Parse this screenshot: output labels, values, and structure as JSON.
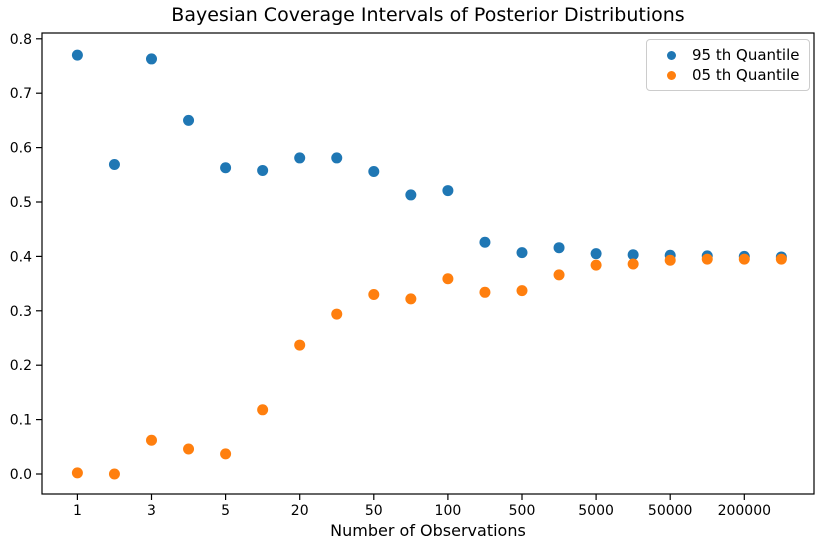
{
  "chart_data": {
    "type": "scatter",
    "title": "Bayesian Coverage Intervals of Posterior Distributions",
    "xlabel": "Number of Observations",
    "ylabel": "",
    "x_axis": {
      "kind": "categorical",
      "n_categories": 20,
      "tick_positions": [
        0,
        2,
        4,
        6,
        8,
        10,
        12,
        14,
        16,
        18
      ],
      "tick_labels": [
        "1",
        "3",
        "5",
        "20",
        "50",
        "100",
        "500",
        "5000",
        "50000",
        "200000"
      ]
    },
    "y_axis": {
      "tick_labels": [
        "0.0",
        "0.1",
        "0.2",
        "0.3",
        "0.4",
        "0.5",
        "0.6",
        "0.7",
        "0.8"
      ],
      "tick_values": [
        0.0,
        0.1,
        0.2,
        0.3,
        0.4,
        0.5,
        0.6,
        0.7,
        0.8
      ],
      "ylim": [
        -0.037,
        0.81
      ]
    },
    "grid": false,
    "legend_position": "upper right",
    "series": [
      {
        "name": "95 th Quantile",
        "color": "#1f77b4",
        "x_index": [
          0,
          1,
          2,
          3,
          4,
          5,
          6,
          7,
          8,
          9,
          10,
          11,
          12,
          13,
          14,
          15,
          16,
          17,
          18,
          19
        ],
        "values": [
          0.77,
          0.569,
          0.763,
          0.65,
          0.563,
          0.558,
          0.581,
          0.581,
          0.556,
          0.513,
          0.521,
          0.426,
          0.407,
          0.416,
          0.405,
          0.403,
          0.402,
          0.401,
          0.4,
          0.399
        ]
      },
      {
        "name": "05 th Quantile",
        "color": "#ff7f0e",
        "x_index": [
          0,
          1,
          2,
          3,
          4,
          5,
          6,
          7,
          8,
          9,
          10,
          11,
          12,
          13,
          14,
          15,
          16,
          17,
          18,
          19
        ],
        "values": [
          0.002,
          0.0,
          0.062,
          0.046,
          0.037,
          0.118,
          0.237,
          0.294,
          0.33,
          0.322,
          0.359,
          0.334,
          0.337,
          0.366,
          0.384,
          0.386,
          0.393,
          0.395,
          0.395,
          0.395
        ]
      }
    ],
    "spine_color": "#000000",
    "tick_label_color": "#000000",
    "background_color": "#ffffff"
  }
}
